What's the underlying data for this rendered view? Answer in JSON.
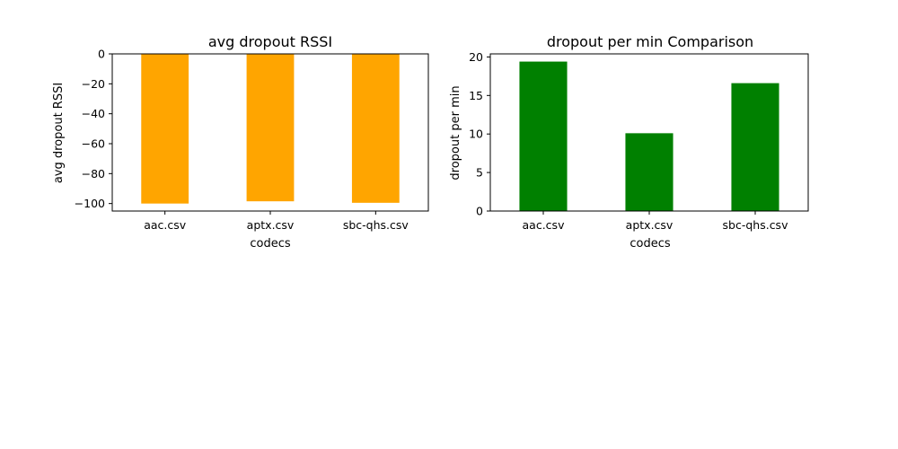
{
  "chart_data": [
    {
      "type": "bar",
      "title": "avg dropout RSSI",
      "xlabel": "codecs",
      "ylabel": "avg dropout RSSI",
      "categories": [
        "aac.csv",
        "aptx.csv",
        "sbc-qhs.csv"
      ],
      "values": [
        -100,
        -98.5,
        -99.5
      ],
      "ylim": [
        -105,
        0
      ],
      "yticks": [
        0,
        -20,
        -40,
        -60,
        -80,
        -100
      ],
      "ytick_labels": [
        "0",
        "−20",
        "−40",
        "−60",
        "−80",
        "−100"
      ],
      "color": "#ffa500",
      "grid": false
    },
    {
      "type": "bar",
      "title": "dropout per min  Comparison",
      "xlabel": "codecs",
      "ylabel": "dropout per min",
      "categories": [
        "aac.csv",
        "aptx.csv",
        "sbc-qhs.csv"
      ],
      "values": [
        19.4,
        10.1,
        16.6
      ],
      "ylim": [
        0,
        20.4
      ],
      "yticks": [
        0,
        5,
        10,
        15,
        20
      ],
      "ytick_labels": [
        "0",
        "5",
        "10",
        "15",
        "20"
      ],
      "color": "#008000",
      "grid": false
    }
  ]
}
